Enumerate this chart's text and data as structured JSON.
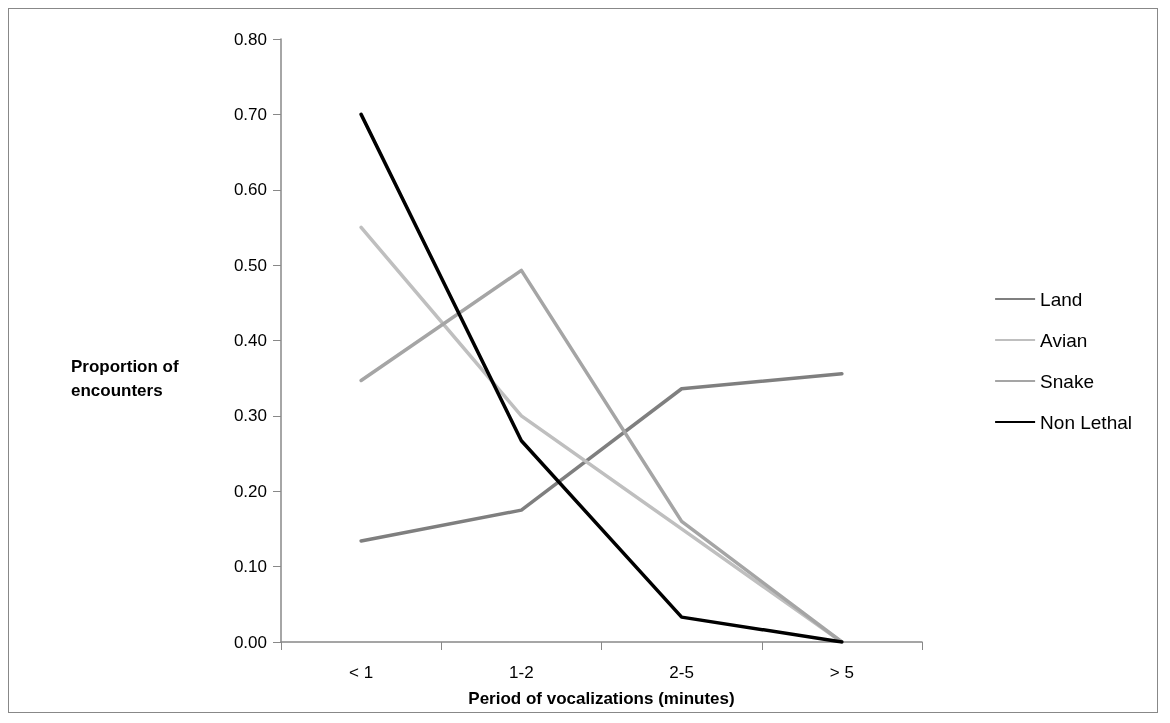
{
  "chart_data": {
    "type": "line",
    "xlabel": "Period of vocalizations (minutes)",
    "ylabel": "Proportion of encounters",
    "categories": [
      "< 1",
      "1-2",
      "2-5",
      "> 5"
    ],
    "series": [
      {
        "name": "Land",
        "color": "#7f7f7f",
        "values": [
          0.134,
          0.175,
          0.336,
          0.356
        ]
      },
      {
        "name": "Avian",
        "color": "#bfbfbf",
        "values": [
          0.55,
          0.3,
          0.15,
          0.0
        ]
      },
      {
        "name": "Snake",
        "color": "#a5a5a5",
        "values": [
          0.347,
          0.493,
          0.16,
          0.0
        ]
      },
      {
        "name": "Non Lethal",
        "color": "#000000",
        "values": [
          0.7,
          0.267,
          0.033,
          0.0
        ]
      }
    ],
    "ylim": [
      0,
      0.8
    ],
    "yticks": [
      {
        "value": 0,
        "label": "0.00"
      },
      {
        "value": 0.1,
        "label": "0.10"
      },
      {
        "value": 0.2,
        "label": "0.20"
      },
      {
        "value": 0.3,
        "label": "0.30"
      },
      {
        "value": 0.4,
        "label": "0.40"
      },
      {
        "value": 0.5,
        "label": "0.50"
      },
      {
        "value": 0.6,
        "label": "0.60"
      },
      {
        "value": 0.7,
        "label": "0.70"
      },
      {
        "value": 0.8,
        "label": "0.80"
      }
    ],
    "grid": false,
    "legend": "right",
    "marker": "none",
    "line_style": "solid"
  }
}
